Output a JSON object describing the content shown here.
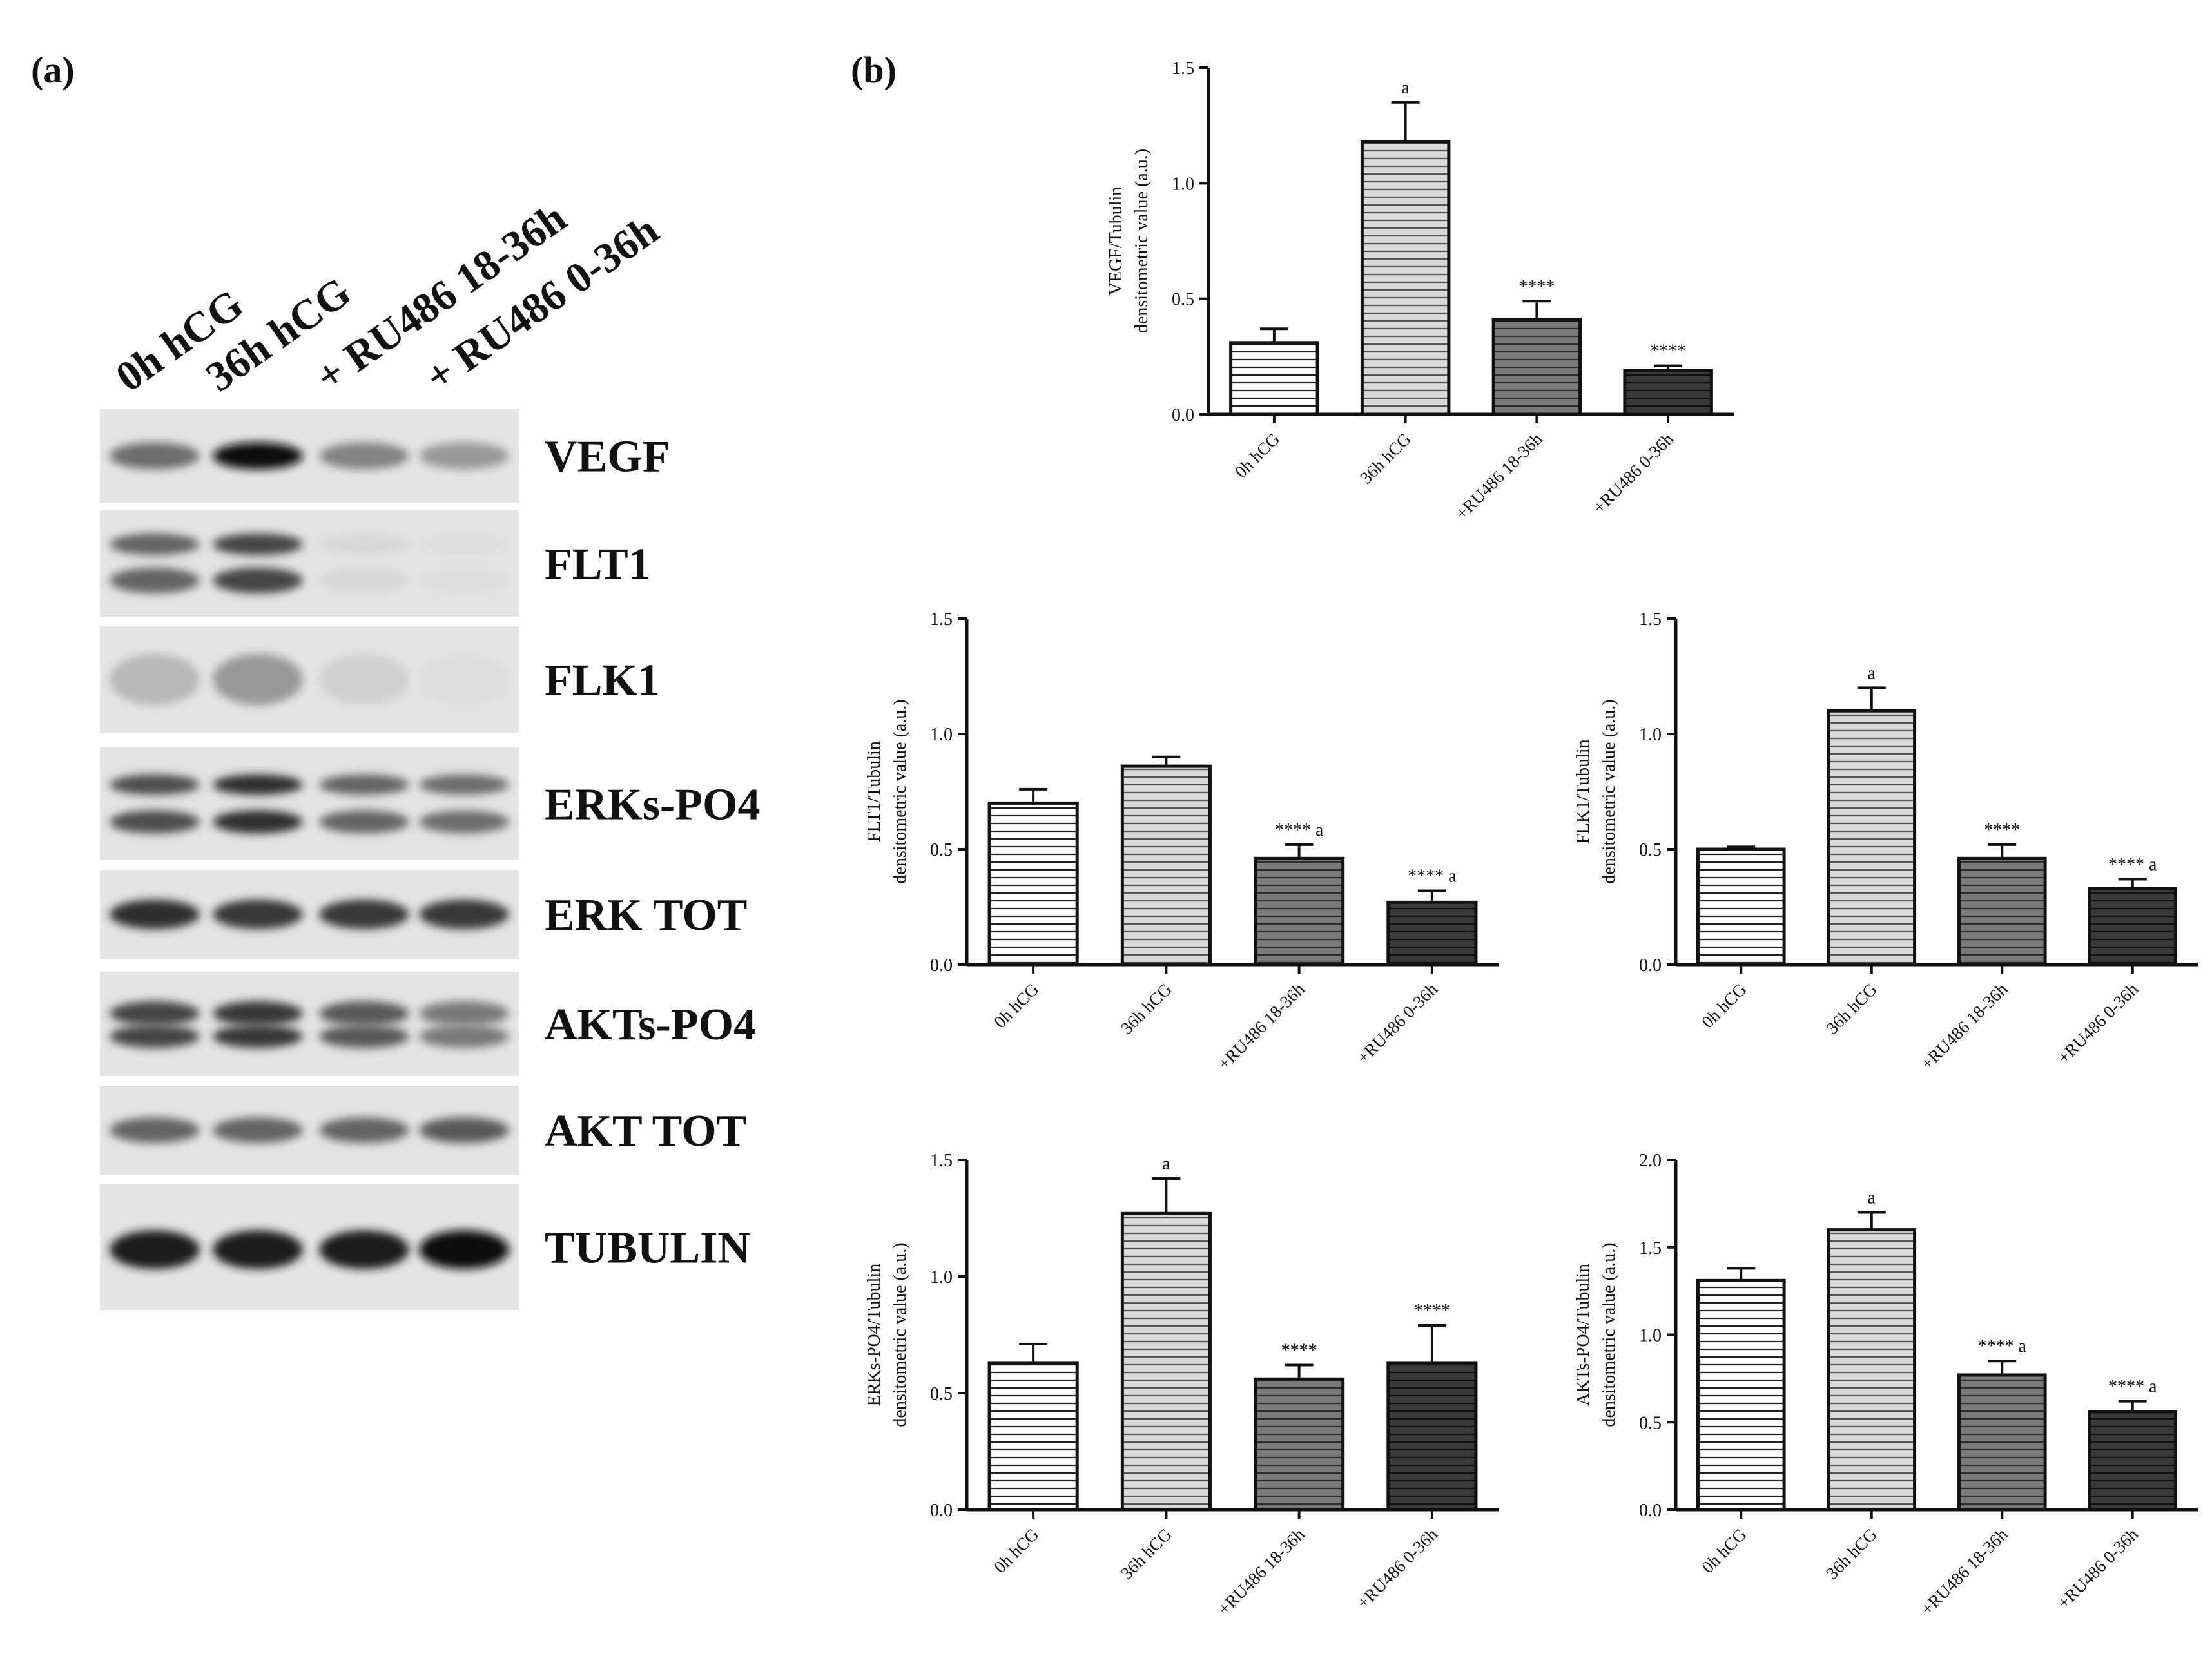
{
  "panels": {
    "a": "(a)",
    "b": "(b)"
  },
  "blot": {
    "lanes": [
      "0h hCG",
      "36h hCG",
      "+ RU486 18-36h",
      "+ RU486 0-36h"
    ],
    "proteins": [
      "VEGF",
      "FLT1",
      "FLK1",
      "ERKs-PO4",
      "ERK TOT",
      "AKTs-PO4",
      "AKT TOT",
      "TUBULIN"
    ],
    "band_intensity": [
      [
        0.55,
        1.0,
        0.45,
        0.35
      ],
      [
        0.6,
        0.75,
        0.05,
        0.02
      ],
      [
        0.2,
        0.35,
        0.08,
        0.02
      ],
      [
        0.7,
        0.85,
        0.6,
        0.55
      ],
      [
        0.85,
        0.8,
        0.8,
        0.8
      ],
      [
        0.75,
        0.8,
        0.65,
        0.5
      ],
      [
        0.6,
        0.6,
        0.6,
        0.65
      ],
      [
        0.95,
        0.95,
        0.95,
        1.0
      ]
    ]
  },
  "colors": {
    "bar_fills": [
      "#ffffff",
      "#d9d9d9",
      "#7a7a7a",
      "#3a3a3a"
    ],
    "stripe_colors": [
      "#222222",
      "#555555",
      "#2b2b2b",
      "#111111"
    ]
  },
  "chart_data": [
    {
      "type": "bar",
      "categories": [
        "0h hCG",
        "36h hCG",
        "+RU486 18-36h",
        "+RU486 0-36h"
      ],
      "values": [
        0.31,
        1.18,
        0.41,
        0.19
      ],
      "errors": [
        0.06,
        0.17,
        0.08,
        0.02
      ],
      "annotations": [
        "",
        "a",
        "****",
        "****"
      ],
      "ylabel_line1": "VEGF/Tubulin",
      "ylabel_line2": "densitometric value (a.u.)",
      "ylim": [
        0,
        1.5
      ],
      "yticks": [
        "0.0",
        "0.5",
        "1.0",
        "1.5"
      ]
    },
    {
      "type": "bar",
      "categories": [
        "0h hCG",
        "36h hCG",
        "+RU486 18-36h",
        "+RU486 0-36h"
      ],
      "values": [
        0.7,
        0.86,
        0.46,
        0.27
      ],
      "errors": [
        0.06,
        0.04,
        0.06,
        0.05
      ],
      "annotations": [
        "",
        "",
        "****  a",
        "****  a"
      ],
      "ylabel_line1": "FLT1/Tubulin",
      "ylabel_line2": "densitometric value (a.u.)",
      "ylim": [
        0,
        1.5
      ],
      "yticks": [
        "0.0",
        "0.5",
        "1.0",
        "1.5"
      ]
    },
    {
      "type": "bar",
      "categories": [
        "0h hCG",
        "36h hCG",
        "+RU486 18-36h",
        "+RU486 0-36h"
      ],
      "values": [
        0.5,
        1.1,
        0.46,
        0.33
      ],
      "errors": [
        0.01,
        0.1,
        0.06,
        0.04
      ],
      "annotations": [
        "",
        "a",
        "****",
        "****  a"
      ],
      "ylabel_line1": "FLK1/Tubulin",
      "ylabel_line2": "densitometric value (a.u.)",
      "ylim": [
        0,
        1.5
      ],
      "yticks": [
        "0.0",
        "0.5",
        "1.0",
        "1.5"
      ]
    },
    {
      "type": "bar",
      "categories": [
        "0h hCG",
        "36h hCG",
        "+RU486 18-36h",
        "+RU486 0-36h"
      ],
      "values": [
        0.63,
        1.27,
        0.56,
        0.63
      ],
      "errors": [
        0.08,
        0.15,
        0.06,
        0.16
      ],
      "annotations": [
        "",
        "a",
        "****",
        "****"
      ],
      "ylabel_line1": "ERKs-PO4/Tubulin",
      "ylabel_line2": "densitometric value (a.u.)",
      "ylim": [
        0,
        1.5
      ],
      "yticks": [
        "0.0",
        "0.5",
        "1.0",
        "1.5"
      ]
    },
    {
      "type": "bar",
      "categories": [
        "0h hCG",
        "36h hCG",
        "+RU486 18-36h",
        "+RU486 0-36h"
      ],
      "values": [
        1.31,
        1.6,
        0.77,
        0.56
      ],
      "errors": [
        0.07,
        0.1,
        0.08,
        0.06
      ],
      "annotations": [
        "",
        "a",
        "****  a",
        "****  a"
      ],
      "ylabel_line1": "AKTs-PO4/Tubulin",
      "ylabel_line2": "densitometric value (a.u.)",
      "ylim": [
        0,
        2.0
      ],
      "yticks": [
        "0.0",
        "0.5",
        "1.0",
        "1.5",
        "2.0"
      ]
    }
  ]
}
